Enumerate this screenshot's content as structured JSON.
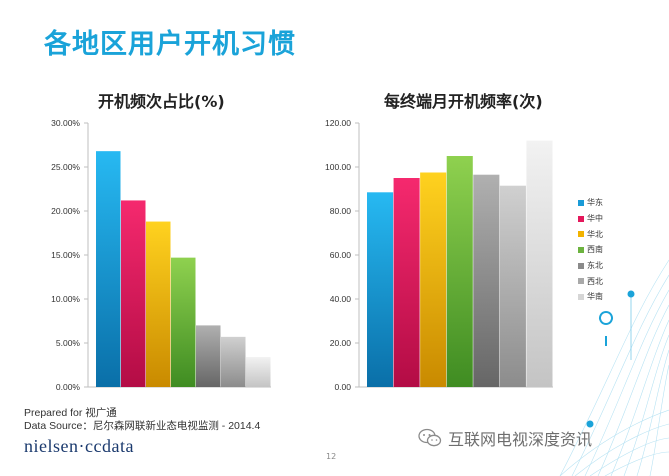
{
  "slide": {
    "title": "各地区用户开机习惯",
    "page_number": "12"
  },
  "footer": {
    "prepared_for": "Prepared for 视广通",
    "data_source": "Data Source：尼尔森网联新业态电视监测 - 2014.4",
    "logo_text": "nielsen·ccdata",
    "watermark": "互联网电视深度资讯"
  },
  "legend": {
    "items": [
      {
        "label": "华东",
        "color": "#1a9bd7"
      },
      {
        "label": "华中",
        "color": "#e4185b"
      },
      {
        "label": "华北",
        "color": "#f2b300"
      },
      {
        "label": "西南",
        "color": "#6cb33f"
      },
      {
        "label": "东北",
        "color": "#8a8a8a"
      },
      {
        "label": "西北",
        "color": "#a9a9a9"
      },
      {
        "label": "华南",
        "color": "#d6d6d6"
      }
    ]
  },
  "chart_data": [
    {
      "type": "bar",
      "title": "开机频次占比(%)",
      "categories": [
        "华东",
        "华中",
        "华北",
        "西南",
        "东北",
        "西北",
        "华南"
      ],
      "values": [
        26.8,
        21.2,
        18.8,
        14.7,
        7.0,
        5.7,
        3.4
      ],
      "ylim": [
        0,
        30
      ],
      "yticks": [
        "0.00%",
        "5.00%",
        "10.00%",
        "15.00%",
        "20.00%",
        "25.00%",
        "30.00%"
      ],
      "xlabel": "",
      "ylabel": ""
    },
    {
      "type": "bar",
      "title": "每终端月开机频率(次)",
      "categories": [
        "华东",
        "华中",
        "华北",
        "西南",
        "东北",
        "西北",
        "华南"
      ],
      "values": [
        88.5,
        95.0,
        97.5,
        105.0,
        96.5,
        91.5,
        112.0
      ],
      "ylim": [
        0,
        120
      ],
      "yticks": [
        "0.00",
        "20.00",
        "40.00",
        "60.00",
        "80.00",
        "100.00",
        "120.00"
      ],
      "xlabel": "",
      "ylabel": ""
    }
  ]
}
